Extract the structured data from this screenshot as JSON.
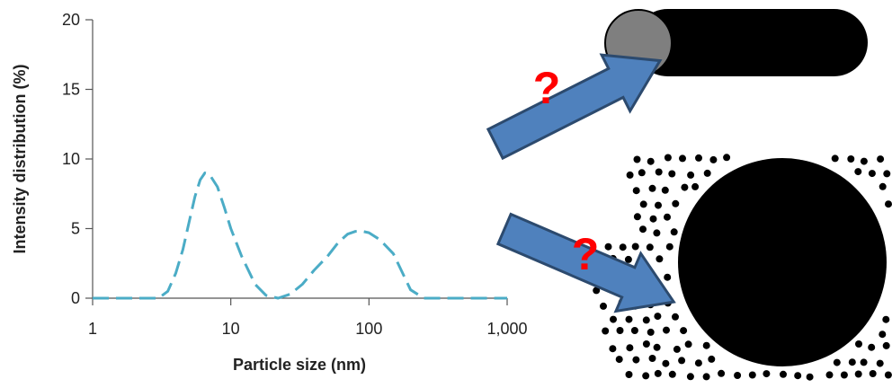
{
  "chart_data": {
    "type": "line",
    "xlabel": "Particle size (nm)",
    "ylabel": "Intensity distribution (%)",
    "x": [
      1,
      2,
      3,
      3.5,
      4,
      4.5,
      5,
      5.5,
      6,
      6.5,
      7,
      8,
      9,
      10,
      12,
      15,
      18,
      22,
      27,
      33,
      40,
      50,
      60,
      70,
      80,
      90,
      100,
      120,
      150,
      200,
      250,
      300,
      400,
      500,
      1000
    ],
    "series": [
      {
        "color": "#4bacc6",
        "values": [
          0,
          0,
          0,
          0.5,
          1.8,
          3.5,
          5.5,
          7.3,
          8.5,
          9.0,
          8.9,
          8.0,
          6.5,
          5.0,
          3.0,
          1.0,
          0.2,
          0,
          0.3,
          1.0,
          2.0,
          3.0,
          4.0,
          4.6,
          4.8,
          4.8,
          4.7,
          4.2,
          3.2,
          0.6,
          0,
          0,
          0,
          0,
          0
        ]
      }
    ],
    "xlog": true,
    "xlim": [
      1,
      1000
    ],
    "xticks": [
      1,
      10,
      100,
      {
        "value": 1000,
        "label": "1,000"
      }
    ],
    "ylim": [
      0,
      20
    ],
    "yticks": [
      0,
      5,
      10,
      15,
      20
    ]
  },
  "diagram": {
    "labels": [
      "?",
      "?"
    ]
  }
}
